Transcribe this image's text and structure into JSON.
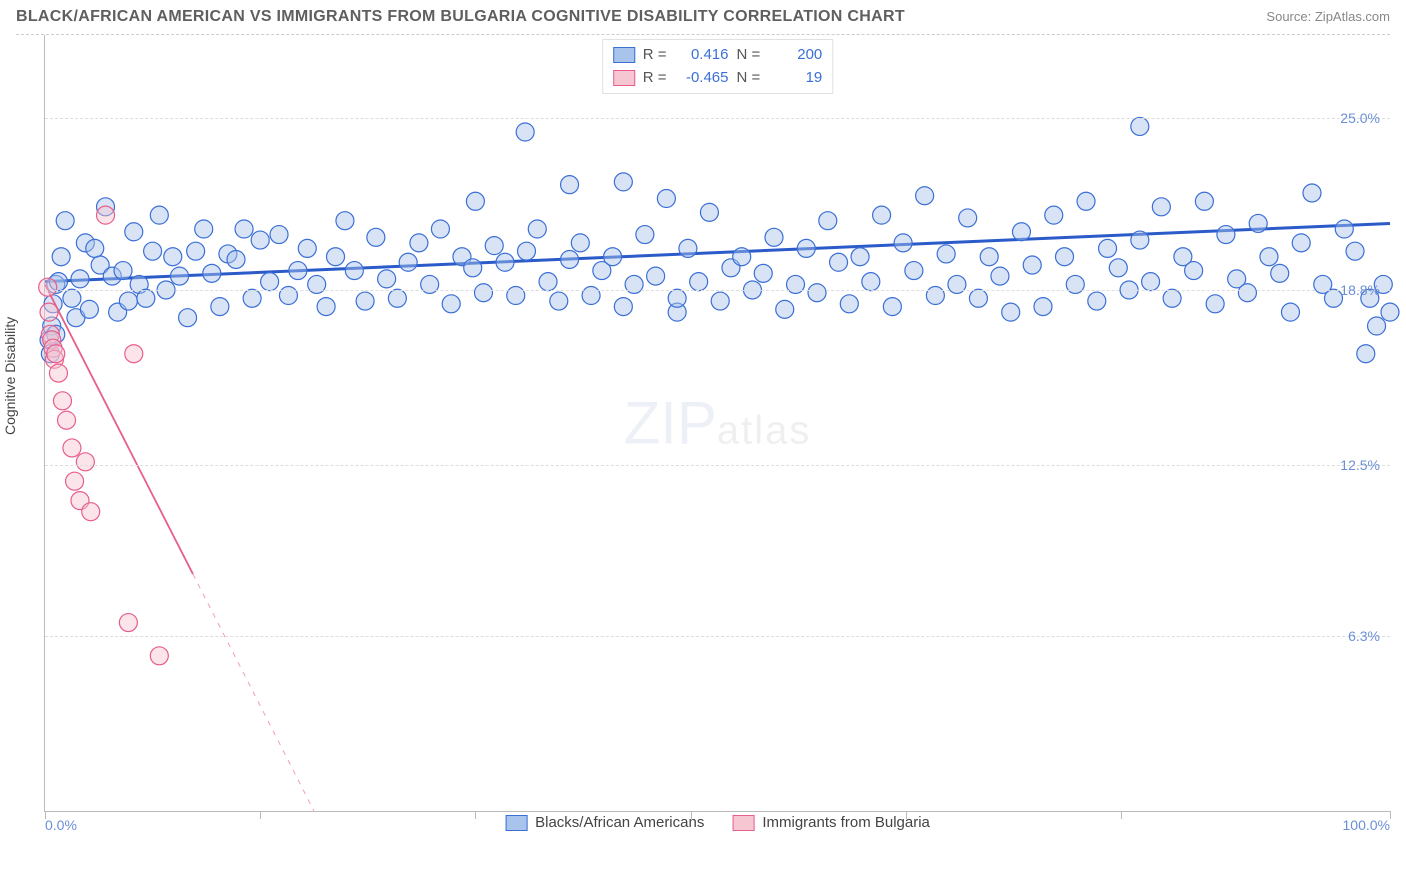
{
  "header": {
    "title": "BLACK/AFRICAN AMERICAN VS IMMIGRANTS FROM BULGARIA COGNITIVE DISABILITY CORRELATION CHART",
    "source_label": "Source:",
    "source_name": "ZipAtlas.com"
  },
  "chart": {
    "type": "scatter",
    "ylabel": "Cognitive Disability",
    "watermark_main": "ZIP",
    "watermark_sub": "atlas",
    "background_color": "#ffffff",
    "grid_color": "#dddddd",
    "axis_color": "#bbbbbb",
    "xlim": [
      0,
      100
    ],
    "ylim": [
      0,
      28
    ],
    "xticks": [
      0,
      16,
      32,
      48,
      64,
      80,
      100
    ],
    "xtick_labels": {
      "first": "0.0%",
      "last": "100.0%"
    },
    "yticks": [
      {
        "v": 6.3,
        "label": "6.3%"
      },
      {
        "v": 12.5,
        "label": "12.5%"
      },
      {
        "v": 18.8,
        "label": "18.8%"
      },
      {
        "v": 25.0,
        "label": "25.0%"
      }
    ],
    "title_fontsize": 15,
    "tick_fontsize": 14,
    "legend_top": [
      {
        "swatch": "#a8c4ec",
        "border": "#3b6fd6",
        "r_label": "R =",
        "r": "0.416",
        "n_label": "N =",
        "n": "200"
      },
      {
        "swatch": "#f7c6d3",
        "border": "#e75e8a",
        "r_label": "R =",
        "r": "-0.465",
        "n_label": "N =",
        "n": "19"
      }
    ],
    "legend_bottom": [
      {
        "swatch": "#a8c4ec",
        "border": "#3b6fd6",
        "label": "Blacks/African Americans"
      },
      {
        "swatch": "#f7c6d3",
        "border": "#e75e8a",
        "label": "Immigrants from Bulgaria"
      }
    ],
    "series": [
      {
        "name": "african_americans",
        "fill": "#a8c4ec",
        "stroke": "#3b6fd6",
        "marker_r": 9,
        "trend": {
          "x1": 0,
          "y1": 19.1,
          "x2": 100,
          "y2": 21.2,
          "color": "#2a5bc9",
          "width": 3
        },
        "points": [
          [
            0.3,
            17.0
          ],
          [
            0.4,
            16.5
          ],
          [
            0.5,
            17.5
          ],
          [
            0.6,
            18.3
          ],
          [
            0.8,
            17.2
          ],
          [
            0.8,
            19.0
          ],
          [
            1.0,
            19.1
          ],
          [
            1.2,
            20.0
          ],
          [
            1.5,
            21.3
          ],
          [
            2.0,
            18.5
          ],
          [
            2.3,
            17.8
          ],
          [
            2.6,
            19.2
          ],
          [
            3.0,
            20.5
          ],
          [
            3.3,
            18.1
          ],
          [
            3.7,
            20.3
          ],
          [
            4.1,
            19.7
          ],
          [
            4.5,
            21.8
          ],
          [
            5.0,
            19.3
          ],
          [
            5.4,
            18.0
          ],
          [
            5.8,
            19.5
          ],
          [
            6.2,
            18.4
          ],
          [
            6.6,
            20.9
          ],
          [
            7.0,
            19.0
          ],
          [
            7.5,
            18.5
          ],
          [
            8.0,
            20.2
          ],
          [
            8.5,
            21.5
          ],
          [
            9.0,
            18.8
          ],
          [
            9.5,
            20.0
          ],
          [
            10.0,
            19.3
          ],
          [
            10.6,
            17.8
          ],
          [
            11.2,
            20.2
          ],
          [
            11.8,
            21.0
          ],
          [
            12.4,
            19.4
          ],
          [
            13.0,
            18.2
          ],
          [
            13.6,
            20.1
          ],
          [
            14.2,
            19.9
          ],
          [
            14.8,
            21.0
          ],
          [
            15.4,
            18.5
          ],
          [
            16.0,
            20.6
          ],
          [
            16.7,
            19.1
          ],
          [
            17.4,
            20.8
          ],
          [
            18.1,
            18.6
          ],
          [
            18.8,
            19.5
          ],
          [
            19.5,
            20.3
          ],
          [
            20.2,
            19.0
          ],
          [
            20.9,
            18.2
          ],
          [
            21.6,
            20.0
          ],
          [
            22.3,
            21.3
          ],
          [
            23.0,
            19.5
          ],
          [
            23.8,
            18.4
          ],
          [
            24.6,
            20.7
          ],
          [
            25.4,
            19.2
          ],
          [
            26.2,
            18.5
          ],
          [
            27.0,
            19.8
          ],
          [
            27.8,
            20.5
          ],
          [
            28.6,
            19.0
          ],
          [
            29.4,
            21.0
          ],
          [
            30.2,
            18.3
          ],
          [
            31.0,
            20.0
          ],
          [
            31.8,
            19.6
          ],
          [
            32.0,
            22.0
          ],
          [
            32.6,
            18.7
          ],
          [
            33.4,
            20.4
          ],
          [
            34.2,
            19.8
          ],
          [
            35.0,
            18.6
          ],
          [
            35.7,
            24.5
          ],
          [
            35.8,
            20.2
          ],
          [
            36.6,
            21.0
          ],
          [
            37.4,
            19.1
          ],
          [
            38.2,
            18.4
          ],
          [
            39.0,
            22.6
          ],
          [
            39.0,
            19.9
          ],
          [
            39.8,
            20.5
          ],
          [
            40.6,
            18.6
          ],
          [
            41.4,
            19.5
          ],
          [
            42.2,
            20.0
          ],
          [
            43.0,
            22.7
          ],
          [
            43.0,
            18.2
          ],
          [
            43.8,
            19.0
          ],
          [
            44.6,
            20.8
          ],
          [
            45.4,
            19.3
          ],
          [
            46.2,
            22.1
          ],
          [
            47.0,
            18.0
          ],
          [
            47.0,
            18.5
          ],
          [
            47.8,
            20.3
          ],
          [
            48.6,
            19.1
          ],
          [
            49.4,
            21.6
          ],
          [
            50.2,
            18.4
          ],
          [
            51.0,
            19.6
          ],
          [
            51.8,
            20.0
          ],
          [
            52.6,
            18.8
          ],
          [
            53.4,
            19.4
          ],
          [
            54.2,
            20.7
          ],
          [
            55.0,
            18.1
          ],
          [
            55.8,
            19.0
          ],
          [
            56.6,
            20.3
          ],
          [
            57.4,
            18.7
          ],
          [
            58.2,
            21.3
          ],
          [
            59.0,
            19.8
          ],
          [
            59.8,
            18.3
          ],
          [
            60.6,
            20.0
          ],
          [
            61.4,
            19.1
          ],
          [
            62.2,
            21.5
          ],
          [
            63.0,
            18.2
          ],
          [
            63.8,
            20.5
          ],
          [
            64.6,
            19.5
          ],
          [
            65.4,
            22.2
          ],
          [
            66.2,
            18.6
          ],
          [
            67.0,
            20.1
          ],
          [
            67.8,
            19.0
          ],
          [
            68.6,
            21.4
          ],
          [
            69.4,
            18.5
          ],
          [
            70.2,
            20.0
          ],
          [
            71.0,
            19.3
          ],
          [
            71.8,
            18.0
          ],
          [
            72.6,
            20.9
          ],
          [
            73.4,
            19.7
          ],
          [
            74.2,
            18.2
          ],
          [
            75.0,
            21.5
          ],
          [
            75.8,
            20.0
          ],
          [
            76.6,
            19.0
          ],
          [
            77.4,
            22.0
          ],
          [
            78.2,
            18.4
          ],
          [
            79.0,
            20.3
          ],
          [
            79.8,
            19.6
          ],
          [
            80.6,
            18.8
          ],
          [
            81.4,
            24.7
          ],
          [
            81.4,
            20.6
          ],
          [
            82.2,
            19.1
          ],
          [
            83.0,
            21.8
          ],
          [
            83.8,
            18.5
          ],
          [
            84.6,
            20.0
          ],
          [
            85.4,
            19.5
          ],
          [
            86.2,
            22.0
          ],
          [
            87.0,
            18.3
          ],
          [
            87.8,
            20.8
          ],
          [
            88.6,
            19.2
          ],
          [
            89.4,
            18.7
          ],
          [
            90.2,
            21.2
          ],
          [
            91.0,
            20.0
          ],
          [
            91.8,
            19.4
          ],
          [
            92.6,
            18.0
          ],
          [
            93.4,
            20.5
          ],
          [
            94.2,
            22.3
          ],
          [
            95.0,
            19.0
          ],
          [
            95.8,
            18.5
          ],
          [
            96.6,
            21.0
          ],
          [
            97.4,
            20.2
          ],
          [
            98.2,
            16.5
          ],
          [
            98.5,
            18.5
          ],
          [
            99.0,
            17.5
          ],
          [
            99.5,
            19.0
          ],
          [
            100.0,
            18.0
          ]
        ]
      },
      {
        "name": "bulgaria",
        "fill": "#f7c6d3",
        "stroke": "#e75e8a",
        "marker_r": 9,
        "trend": {
          "x1": 0,
          "y1": 19.0,
          "x2": 20,
          "y2": 0.0,
          "solid_until_x": 11,
          "color": "#e75e8a",
          "width": 1.8
        },
        "points": [
          [
            0.2,
            18.9
          ],
          [
            0.3,
            18.0
          ],
          [
            0.4,
            17.2
          ],
          [
            0.5,
            17.0
          ],
          [
            0.6,
            16.7
          ],
          [
            0.7,
            16.3
          ],
          [
            0.8,
            16.5
          ],
          [
            1.0,
            15.8
          ],
          [
            1.3,
            14.8
          ],
          [
            1.6,
            14.1
          ],
          [
            2.0,
            13.1
          ],
          [
            2.2,
            11.9
          ],
          [
            2.6,
            11.2
          ],
          [
            3.0,
            12.6
          ],
          [
            3.4,
            10.8
          ],
          [
            4.5,
            21.5
          ],
          [
            6.6,
            16.5
          ],
          [
            6.2,
            6.8
          ],
          [
            8.5,
            5.6
          ]
        ]
      }
    ]
  }
}
